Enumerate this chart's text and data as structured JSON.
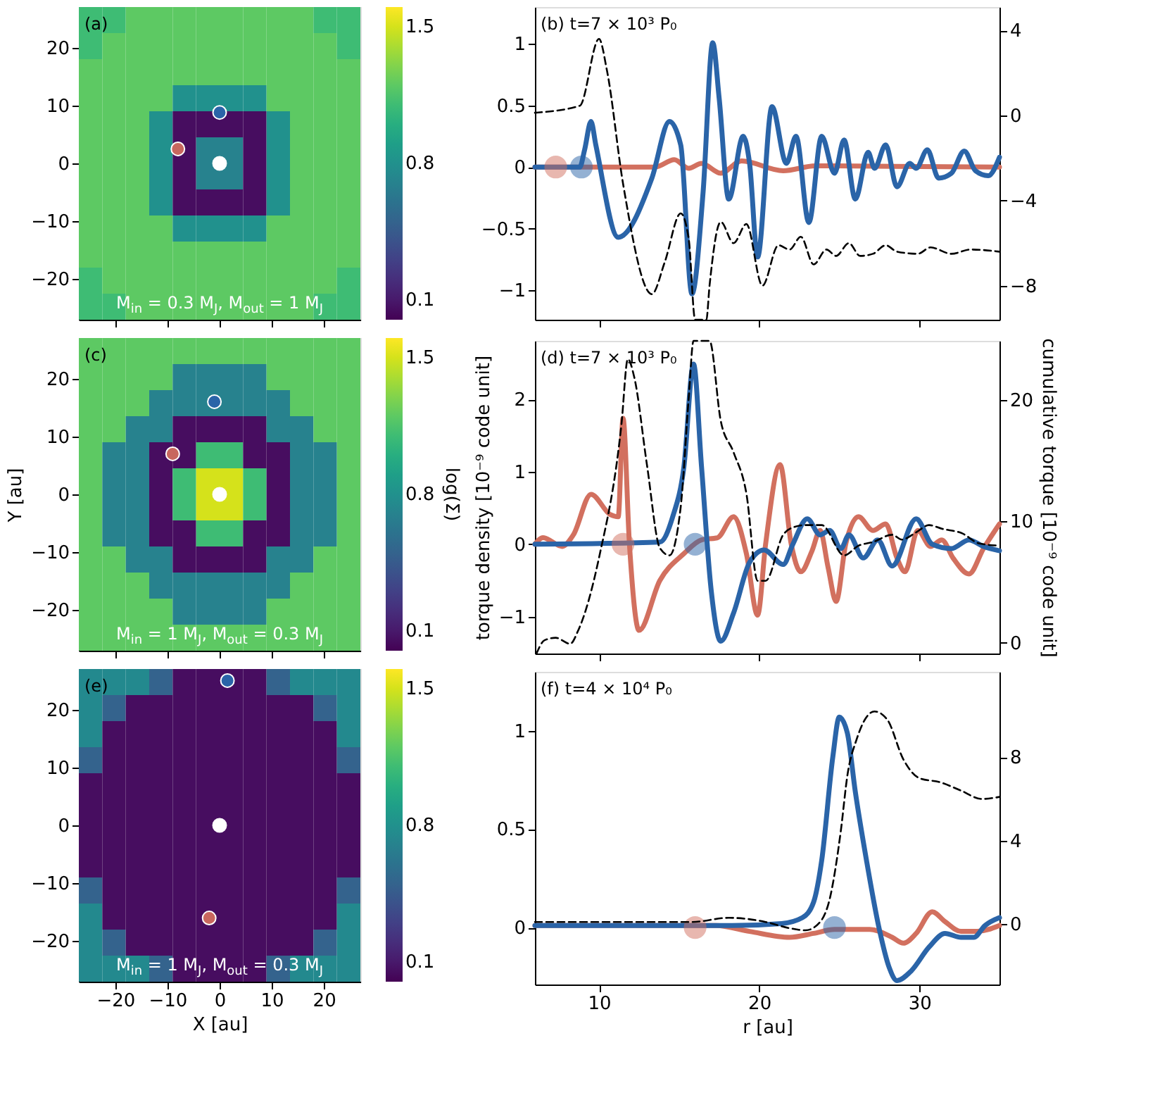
{
  "chart_data": [
    {
      "type": "heatmap",
      "xlim": [
        -27,
        27
      ],
      "ylim": [
        -27,
        27
      ],
      "xticks": [
        -20,
        -10,
        0,
        10,
        20
      ],
      "yticks": [
        -20,
        -10,
        0,
        10,
        20
      ],
      "tick_labels": "y",
      "clim": [
        0,
        1.6
      ],
      "cticks": [
        0.1,
        0.8,
        1.5
      ],
      "annotations": [
        "(a)",
        "M$_{in}$ = 0.3 M$_{J}$, M$_{out}$ = 1 M$_{J}$"
      ],
      "cells": [
        [
          1.1,
          1.1,
          1.2,
          1.2,
          1.2,
          1.2,
          1.2,
          1.2,
          1.2,
          1.2,
          1.1,
          1.1
        ],
        [
          1.1,
          1.2,
          1.2,
          1.2,
          1.2,
          1.2,
          1.2,
          1.2,
          1.2,
          1.2,
          1.2,
          1.1
        ],
        [
          1.2,
          1.2,
          1.2,
          1.2,
          1.2,
          1.2,
          1.2,
          1.2,
          1.2,
          1.2,
          1.2,
          1.2
        ],
        [
          1.2,
          1.2,
          1.2,
          1.2,
          0.8,
          0.8,
          0.8,
          0.8,
          1.2,
          1.2,
          1.2,
          1.2
        ],
        [
          1.2,
          1.2,
          1.2,
          0.8,
          0.05,
          0.05,
          0.05,
          0.05,
          0.8,
          1.2,
          1.2,
          1.2
        ],
        [
          1.2,
          1.2,
          1.2,
          0.8,
          0.05,
          0.7,
          0.7,
          0.05,
          0.8,
          1.2,
          1.2,
          1.2
        ],
        [
          1.2,
          1.2,
          1.2,
          0.8,
          0.05,
          0.7,
          0.7,
          0.05,
          0.8,
          1.2,
          1.2,
          1.2
        ],
        [
          1.2,
          1.2,
          1.2,
          0.8,
          0.05,
          0.05,
          0.05,
          0.05,
          0.8,
          1.2,
          1.2,
          1.2
        ],
        [
          1.2,
          1.2,
          1.2,
          1.2,
          0.8,
          0.8,
          0.8,
          0.8,
          1.2,
          1.2,
          1.2,
          1.2
        ],
        [
          1.2,
          1.2,
          1.2,
          1.2,
          1.2,
          1.2,
          1.2,
          1.2,
          1.2,
          1.2,
          1.2,
          1.2
        ],
        [
          1.1,
          1.2,
          1.2,
          1.2,
          1.2,
          1.2,
          1.2,
          1.2,
          1.2,
          1.2,
          1.2,
          1.1
        ],
        [
          1.1,
          1.1,
          1.2,
          1.2,
          1.2,
          1.2,
          1.2,
          1.2,
          1.2,
          1.2,
          1.1,
          1.1
        ]
      ],
      "series": [
        {
          "type": "scatter",
          "x": [
            0,
            -8,
            0
          ],
          "values": [
            0,
            2.5,
            8.8
          ],
          "colors": [
            "#ffffff",
            "#c8675e",
            "#2a64a8"
          ]
        }
      ]
    },
    {
      "type": "line",
      "xlim": [
        6,
        35
      ],
      "xticks": [
        10,
        20,
        30
      ],
      "ylim": [
        -1.24,
        1.3
      ],
      "yticks": [
        -1,
        -0.5,
        0,
        0.5,
        1
      ],
      "y2lim": [
        -9.6,
        5.1
      ],
      "y2ticks": [
        -8,
        -4,
        0,
        4
      ],
      "tick_labels": "y",
      "annotations": [
        "(b) t=7 × 10³ P₀"
      ],
      "series": [
        {
          "type": "line",
          "color": "#d2705f",
          "x": [
            6,
            13.5,
            14.7,
            15.6,
            16.4,
            17.6,
            18.9,
            21.5,
            23.5,
            35
          ],
          "values": [
            0,
            0,
            0.06,
            -0.01,
            0.03,
            -0.05,
            0.05,
            -0.03,
            0.01,
            0
          ]
        },
        {
          "type": "line",
          "color": "#2a64a8",
          "x": [
            6,
            8.8,
            9.1,
            9.5,
            9.8,
            11.2,
            13.3,
            14.4,
            15.1,
            15.8,
            16.5,
            17.1,
            17.5,
            18.1,
            19.0,
            19.4,
            19.9,
            20.8,
            21.7,
            22.3,
            23.1,
            23.9,
            24.7,
            25.3,
            26.0,
            26.8,
            27.2,
            27.9,
            28.6,
            29.4,
            29.8,
            30.5,
            31.2,
            32.0,
            32.8,
            33.5,
            34.3,
            35
          ],
          "values": [
            0,
            0,
            0.14,
            0.37,
            0.18,
            -0.57,
            -0.09,
            0.37,
            0.18,
            -1.03,
            -0.2,
            1.01,
            0.56,
            -0.26,
            0.25,
            0.03,
            -0.73,
            0.49,
            0.03,
            0.25,
            -0.45,
            0.25,
            -0.05,
            0.22,
            -0.26,
            0.12,
            -0.01,
            0.18,
            -0.16,
            0.03,
            -0.01,
            0.14,
            -0.09,
            -0.05,
            0.13,
            -0.03,
            -0.07,
            0.08
          ]
        },
        {
          "type": "line",
          "axis": "y2",
          "line_style": "dashed",
          "color": "#000000",
          "x": [
            6,
            8.8,
            10.0,
            10.5,
            11.5,
            13.3,
            14.1,
            15.1,
            15.6,
            16.0,
            16.7,
            16.9,
            17.6,
            18.4,
            19.2,
            20.2,
            21.2,
            21.9,
            22.6,
            23.4,
            24.2,
            24.8,
            25.6,
            26.3,
            27.1,
            27.9,
            28.6,
            29.9,
            30.7,
            32.0,
            33.2,
            35
          ],
          "values": [
            0.13,
            0.46,
            3.6,
            2.1,
            -3.2,
            -8.4,
            -6.9,
            -4.6,
            -5.8,
            -9.6,
            -9.6,
            -8.0,
            -5.0,
            -6.0,
            -5.1,
            -8.0,
            -6.1,
            -6.3,
            -5.7,
            -7.0,
            -6.3,
            -6.6,
            -6.0,
            -6.6,
            -6.5,
            -6.1,
            -6.4,
            -6.5,
            -6.2,
            -6.5,
            -6.3,
            -6.4
          ]
        },
        {
          "type": "scatter",
          "x": [
            7.3,
            8.9
          ],
          "values": [
            0,
            0
          ],
          "colors": [
            "#d2705f",
            "#2a64a8"
          ]
        }
      ]
    },
    {
      "type": "heatmap",
      "xlim": [
        -27,
        27
      ],
      "ylim": [
        -27,
        27
      ],
      "xticks": [
        -20,
        -10,
        0,
        10,
        20
      ],
      "yticks": [
        -20,
        -10,
        0,
        10,
        20
      ],
      "tick_labels": "y",
      "clim": [
        0,
        1.6
      ],
      "cticks": [
        0.1,
        0.8,
        1.5
      ],
      "ylabel": "Y [au]",
      "clabel": "log(Σ)",
      "annotations": [
        "(c)",
        "M$_{in}$ = 1 M$_{J}$, M$_{out}$ = 0.3 M$_{J}$"
      ],
      "cells": [
        [
          1.2,
          1.2,
          1.2,
          1.2,
          1.2,
          1.2,
          1.2,
          1.2,
          1.2,
          1.2,
          1.2,
          1.2
        ],
        [
          1.2,
          1.2,
          1.2,
          1.2,
          0.7,
          0.7,
          0.7,
          0.7,
          1.2,
          1.2,
          1.2,
          1.2
        ],
        [
          1.2,
          1.2,
          1.2,
          0.7,
          0.7,
          0.7,
          0.7,
          0.7,
          0.7,
          1.2,
          1.2,
          1.2
        ],
        [
          1.2,
          1.2,
          0.7,
          0.7,
          0.05,
          0.05,
          0.05,
          0.05,
          0.7,
          0.7,
          1.2,
          1.2
        ],
        [
          1.2,
          0.7,
          0.7,
          0.05,
          0.05,
          1.1,
          1.1,
          0.05,
          0.05,
          0.7,
          0.7,
          1.2
        ],
        [
          1.2,
          0.7,
          0.7,
          0.05,
          1.1,
          1.5,
          1.5,
          1.1,
          0.05,
          0.7,
          0.7,
          1.2
        ],
        [
          1.2,
          0.7,
          0.7,
          0.05,
          1.1,
          1.5,
          1.5,
          1.1,
          0.05,
          0.7,
          0.7,
          1.2
        ],
        [
          1.2,
          0.7,
          0.7,
          0.05,
          0.05,
          1.1,
          1.1,
          0.05,
          0.05,
          0.7,
          0.7,
          1.2
        ],
        [
          1.2,
          1.2,
          0.7,
          0.7,
          0.05,
          0.05,
          0.05,
          0.05,
          0.7,
          0.7,
          1.2,
          1.2
        ],
        [
          1.2,
          1.2,
          1.2,
          0.7,
          0.7,
          0.7,
          0.7,
          0.7,
          0.7,
          1.2,
          1.2,
          1.2
        ],
        [
          1.2,
          1.2,
          1.2,
          1.2,
          0.7,
          0.7,
          0.7,
          0.7,
          1.2,
          1.2,
          1.2,
          1.2
        ],
        [
          1.2,
          1.2,
          1.2,
          1.2,
          1.2,
          1.2,
          1.2,
          1.2,
          1.2,
          1.2,
          1.2,
          1.2
        ]
      ],
      "series": [
        {
          "type": "scatter",
          "x": [
            0,
            -9,
            -1
          ],
          "values": [
            0,
            7,
            16
          ],
          "colors": [
            "#ffffff",
            "#c8675e",
            "#2a64a8"
          ]
        }
      ]
    },
    {
      "type": "line",
      "xlim": [
        6,
        35
      ],
      "xticks": [
        10,
        20,
        30
      ],
      "ylim": [
        -1.51,
        2.81
      ],
      "yticks": [
        -1,
        0,
        1,
        2
      ],
      "y2lim": [
        -0.9,
        24.9
      ],
      "y2ticks": [
        0,
        10,
        20
      ],
      "tick_labels": "y",
      "ylabel": "torque density [10⁻⁹ code unit]",
      "y2label": "cumulative torque [10⁻⁹ code unit]",
      "annotations": [
        "(d) t=7 × 10³ P₀"
      ],
      "series": [
        {
          "type": "line",
          "color": "#d2705f",
          "x": [
            6,
            6.5,
            7.7,
            8.4,
            9.5,
            10.7,
            11.2,
            11.5,
            11.9,
            12.5,
            13.8,
            15.3,
            16.4,
            17.4,
            18.4,
            19.2,
            19.9,
            20.4,
            21.3,
            22.0,
            22.6,
            23.3,
            23.8,
            24.3,
            24.8,
            25.4,
            26.2,
            27.1,
            27.9,
            28.6,
            29.1,
            29.9,
            30.7,
            31.4,
            32.1,
            33.1,
            34.0,
            35
          ],
          "values": [
            0,
            0.09,
            -0.03,
            0.13,
            0.69,
            0.41,
            0.38,
            1.74,
            0,
            -1.19,
            -0.5,
            -0.13,
            0.06,
            0.09,
            0.38,
            -0.13,
            -0.98,
            0,
            1.1,
            0,
            -0.38,
            -0.09,
            0.19,
            -0.32,
            -0.79,
            0,
            0.38,
            0.19,
            0.28,
            -0.19,
            -0.38,
            0.19,
            -0.03,
            0.06,
            -0.19,
            -0.41,
            -0.06,
            0.28
          ]
        },
        {
          "type": "line",
          "color": "#2a64a8",
          "x": [
            6,
            13.8,
            14.6,
            15.3,
            15.9,
            16.4,
            17.0,
            17.6,
            18.4,
            19.4,
            20.3,
            21.5,
            22.1,
            23.0,
            23.8,
            24.4,
            25.1,
            25.6,
            26.5,
            27.4,
            28.3,
            29.8,
            30.8,
            32.0,
            33.1,
            34.0,
            35
          ],
          "values": [
            0,
            0.03,
            0.38,
            1.07,
            2.49,
            1.07,
            -0.63,
            -1.34,
            -0.95,
            -0.25,
            -0.08,
            -0.28,
            0,
            0.35,
            0.13,
            0.19,
            -0.06,
            0.13,
            -0.19,
            0.06,
            -0.3,
            0.35,
            0,
            -0.06,
            0.06,
            -0.03,
            -0.09
          ]
        },
        {
          "type": "line",
          "axis": "y2",
          "line_style": "dashed",
          "color": "#000000",
          "x": [
            6.1,
            6.6,
            7.3,
            8.2,
            8.7,
            10.0,
            11.4,
            11.8,
            12.2,
            13.0,
            13.8,
            14.4,
            15.1,
            15.6,
            15.9,
            16.9,
            17.6,
            18.4,
            19.2,
            19.9,
            20.4,
            21.5,
            22.1,
            22.9,
            23.9,
            25.3,
            26.2,
            27.1,
            28.3,
            28.9,
            29.8,
            30.6,
            31.4,
            32.7,
            33.7,
            35
          ],
          "values": [
            -0.9,
            0.2,
            0.4,
            -0.1,
            1.0,
            7.0,
            18.0,
            23.4,
            21.9,
            14.6,
            7.8,
            7.2,
            11.2,
            20.2,
            24.9,
            24.9,
            18.3,
            15.7,
            12.3,
            5.1,
            5.1,
            8.9,
            9.5,
            9.7,
            9.7,
            7.2,
            8.0,
            8.3,
            8.9,
            8.5,
            9.1,
            9.7,
            9.4,
            9.0,
            8.2,
            8.0
          ]
        },
        {
          "type": "scatter",
          "x": [
            11.5,
            16.0
          ],
          "values": [
            0,
            0
          ],
          "colors": [
            "#d2705f",
            "#2a64a8"
          ]
        }
      ]
    },
    {
      "type": "heatmap",
      "xlim": [
        -27,
        27
      ],
      "ylim": [
        -27,
        27
      ],
      "xticks": [
        -20,
        -10,
        0,
        10,
        20
      ],
      "yticks": [
        -20,
        -10,
        0,
        10,
        20
      ],
      "clim": [
        0,
        1.6
      ],
      "cticks": [
        0.1,
        0.8,
        1.5
      ],
      "xlabel": "X [au]",
      "annotations": [
        "(e)",
        "M$_{in}$ = 1 M$_{J}$, M$_{out}$ = 0.3 M$_{J}$"
      ],
      "cells": [
        [
          0.75,
          0.75,
          0.75,
          0.5,
          0.05,
          0.05,
          0.05,
          0.05,
          0.5,
          0.75,
          0.75,
          0.75
        ],
        [
          0.75,
          0.5,
          0.05,
          0.05,
          0.05,
          0.05,
          0.05,
          0.05,
          0.05,
          0.05,
          0.5,
          0.75
        ],
        [
          0.75,
          0.05,
          0.05,
          0.05,
          0.05,
          0.05,
          0.05,
          0.05,
          0.05,
          0.05,
          0.05,
          0.75
        ],
        [
          0.5,
          0.05,
          0.05,
          0.05,
          0.05,
          0.05,
          0.05,
          0.05,
          0.05,
          0.05,
          0.05,
          0.5
        ],
        [
          0.05,
          0.05,
          0.05,
          0.05,
          0.05,
          0.05,
          0.05,
          0.05,
          0.05,
          0.05,
          0.05,
          0.05
        ],
        [
          0.05,
          0.05,
          0.05,
          0.05,
          0.05,
          0.05,
          0.05,
          0.05,
          0.05,
          0.05,
          0.05,
          0.05
        ],
        [
          0.05,
          0.05,
          0.05,
          0.05,
          0.05,
          0.05,
          0.05,
          0.05,
          0.05,
          0.05,
          0.05,
          0.05
        ],
        [
          0.05,
          0.05,
          0.05,
          0.05,
          0.05,
          0.05,
          0.05,
          0.05,
          0.05,
          0.05,
          0.05,
          0.05
        ],
        [
          0.5,
          0.05,
          0.05,
          0.05,
          0.05,
          0.05,
          0.05,
          0.05,
          0.05,
          0.05,
          0.05,
          0.5
        ],
        [
          0.75,
          0.05,
          0.05,
          0.05,
          0.05,
          0.05,
          0.05,
          0.05,
          0.05,
          0.05,
          0.05,
          0.75
        ],
        [
          0.75,
          0.5,
          0.05,
          0.05,
          0.05,
          0.05,
          0.05,
          0.05,
          0.05,
          0.05,
          0.5,
          0.75
        ],
        [
          0.75,
          0.75,
          0.75,
          0.5,
          0.05,
          0.05,
          0.05,
          0.05,
          0.5,
          0.75,
          0.75,
          0.75
        ]
      ],
      "series": [
        {
          "type": "scatter",
          "x": [
            0,
            -2,
            1.5
          ],
          "values": [
            0,
            -16,
            25
          ],
          "colors": [
            "#ffffff",
            "#c8675e",
            "#2a64a8"
          ]
        }
      ]
    },
    {
      "type": "line",
      "xlim": [
        6,
        35
      ],
      "xticks": [
        10,
        20,
        30
      ],
      "ylim": [
        -0.29,
        1.3
      ],
      "yticks": [
        0,
        0.5,
        1
      ],
      "y2lim": [
        -2.9,
        12.1
      ],
      "y2ticks": [
        0,
        4,
        8
      ],
      "xlabel": "r [au]",
      "annotations": [
        "(f) t=4 × 10⁴ P₀"
      ],
      "series": [
        {
          "type": "line",
          "color": "#d2705f",
          "x": [
            6,
            17.3,
            19.4,
            21.9,
            23.4,
            24.7,
            26.9,
            28.3,
            29.0,
            29.8,
            30.8,
            31.6,
            32.6,
            33.6,
            35
          ],
          "values": [
            0.01,
            0.01,
            -0.02,
            -0.05,
            -0.03,
            -0.01,
            -0.01,
            -0.05,
            -0.08,
            -0.03,
            0.08,
            0.03,
            -0.02,
            -0.02,
            0.01
          ]
        },
        {
          "type": "line",
          "color": "#2a64a8",
          "x": [
            6,
            18.3,
            21.4,
            22.7,
            23.4,
            23.9,
            24.6,
            25.0,
            25.5,
            26.0,
            26.7,
            27.5,
            28.1,
            28.6,
            29.5,
            30.6,
            31.6,
            32.6,
            33.4,
            34.1,
            35
          ],
          "values": [
            0.01,
            0.01,
            0.02,
            0.05,
            0.13,
            0.34,
            0.87,
            1.07,
            0.99,
            0.69,
            0.34,
            -0.01,
            -0.2,
            -0.27,
            -0.22,
            -0.1,
            -0.03,
            -0.05,
            -0.05,
            0.01,
            0.05
          ]
        },
        {
          "type": "line",
          "axis": "y2",
          "line_style": "dashed",
          "color": "#000000",
          "x": [
            6,
            15.8,
            18.1,
            20.4,
            21.9,
            22.9,
            23.8,
            24.4,
            25.1,
            25.5,
            26.1,
            27.2,
            28.0,
            29.0,
            30.0,
            31.3,
            32.6,
            33.9,
            35
          ],
          "values": [
            0.1,
            0.1,
            0.3,
            0.1,
            -0.2,
            -0.3,
            0.1,
            1.2,
            4.5,
            7.1,
            8.9,
            10.2,
            9.8,
            7.9,
            7.0,
            6.8,
            6.4,
            6.0,
            6.1
          ]
        },
        {
          "type": "scatter",
          "x": [
            16.0,
            24.7
          ],
          "values": [
            0,
            0
          ],
          "colors": [
            "#d2705f",
            "#2a64a8"
          ]
        }
      ]
    }
  ]
}
